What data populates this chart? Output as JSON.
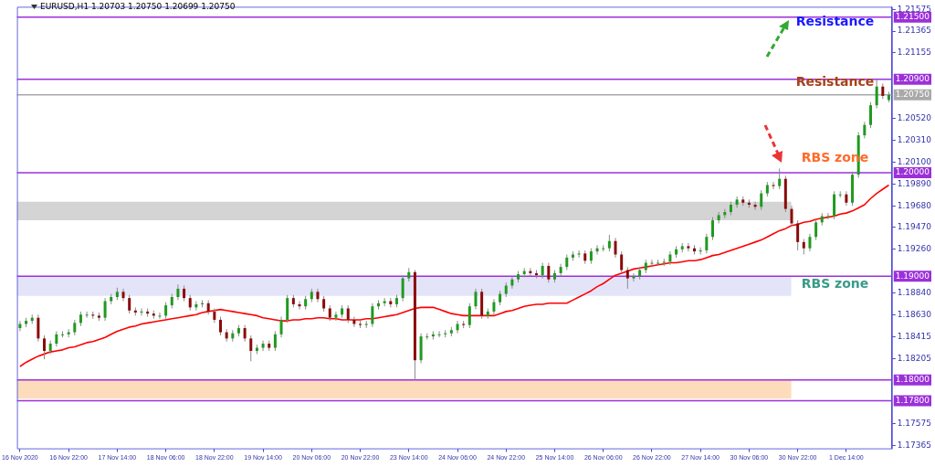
{
  "chart_data": {
    "type": "candlestick",
    "title": "EURUSD,H1  1.20703 1.20750 1.20699 1.20750",
    "categories": [
      "16 Nov 2020",
      null,
      null,
      null,
      null,
      null,
      null,
      null,
      "16 Nov 22:00",
      null,
      null,
      null,
      null,
      null,
      null,
      null,
      "17 Nov 14:00",
      null,
      null,
      null,
      null,
      null,
      null,
      null,
      "18 Nov 06:00",
      null,
      null,
      null,
      null,
      null,
      null,
      null,
      "18 Nov 22:00",
      null,
      null,
      null,
      null,
      null,
      null,
      null,
      "19 Nov 14:00",
      null,
      null,
      null,
      null,
      null,
      null,
      null,
      "20 Nov 06:00",
      null,
      null,
      null,
      null,
      null,
      null,
      null,
      "20 Nov 22:00",
      null,
      null,
      null,
      null,
      null,
      null,
      null,
      "23 Nov 14:00",
      null,
      null,
      null,
      null,
      null,
      null,
      null,
      "24 Nov 06:00",
      null,
      null,
      null,
      null,
      null,
      null,
      null,
      "24 Nov 22:00",
      null,
      null,
      null,
      null,
      null,
      null,
      null,
      "25 Nov 14:00",
      null,
      null,
      null,
      null,
      null,
      null,
      null,
      "26 Nov 06:00",
      null,
      null,
      null,
      null,
      null,
      null,
      null,
      "26 Nov 22:00",
      null,
      null,
      null,
      null,
      null,
      null,
      null,
      "27 Nov 14:00",
      null,
      null,
      null,
      null,
      null,
      null,
      null,
      "30 Nov 06:00",
      null,
      null,
      null,
      null,
      null,
      null,
      null,
      "30 Nov 22:00",
      null,
      null,
      null,
      null,
      null,
      null,
      null,
      "1 Dec 14:00",
      null,
      null,
      null,
      null,
      null,
      null,
      null
    ],
    "ohlc": [
      [
        1.185,
        1.1857,
        1.1847,
        1.1854
      ],
      [
        1.1854,
        1.186,
        1.1851,
        1.1857
      ],
      [
        1.1857,
        1.1863,
        1.1854,
        1.186
      ],
      [
        1.186,
        1.1863,
        1.1837,
        1.184
      ],
      [
        1.184,
        1.1843,
        1.182,
        1.1828
      ],
      [
        1.1828,
        1.1838,
        1.1825,
        1.1835
      ],
      [
        1.1835,
        1.1847,
        1.1832,
        1.1844
      ],
      [
        1.1844,
        1.1847,
        1.1841,
        1.1844
      ],
      [
        1.1844,
        1.1849,
        1.1841,
        1.1846
      ],
      [
        1.1846,
        1.1858,
        1.1843,
        1.1855
      ],
      [
        1.1855,
        1.1866,
        1.1852,
        1.1863
      ],
      [
        1.1863,
        1.1866,
        1.186,
        1.1863
      ],
      [
        1.1863,
        1.1866,
        1.1859,
        1.1862
      ],
      [
        1.1862,
        1.1865,
        1.1857,
        1.186
      ],
      [
        1.186,
        1.1879,
        1.1857,
        1.1876
      ],
      [
        1.1876,
        1.1883,
        1.1873,
        1.188
      ],
      [
        1.188,
        1.1889,
        1.1877,
        1.1885
      ],
      [
        1.1885,
        1.1888,
        1.1876,
        1.1879
      ],
      [
        1.1879,
        1.1882,
        1.1864,
        1.1867
      ],
      [
        1.1867,
        1.187,
        1.1862,
        1.1865
      ],
      [
        1.1865,
        1.1869,
        1.1862,
        1.1866
      ],
      [
        1.1866,
        1.1869,
        1.1861,
        1.1864
      ],
      [
        1.1864,
        1.1867,
        1.1859,
        1.1862
      ],
      [
        1.1862,
        1.1865,
        1.1859,
        1.1862
      ],
      [
        1.1862,
        1.1875,
        1.1859,
        1.1872
      ],
      [
        1.1872,
        1.1883,
        1.1869,
        1.188
      ],
      [
        1.188,
        1.1892,
        1.1877,
        1.1888
      ],
      [
        1.1888,
        1.1891,
        1.1876,
        1.1879
      ],
      [
        1.1879,
        1.1882,
        1.1867,
        1.187
      ],
      [
        1.187,
        1.1876,
        1.1867,
        1.1873
      ],
      [
        1.1873,
        1.1877,
        1.187,
        1.1874
      ],
      [
        1.1874,
        1.1877,
        1.1863,
        1.1866
      ],
      [
        1.1866,
        1.1869,
        1.1855,
        1.1858
      ],
      [
        1.1858,
        1.1861,
        1.1843,
        1.1846
      ],
      [
        1.1846,
        1.1849,
        1.1837,
        1.184
      ],
      [
        1.184,
        1.1848,
        1.1837,
        1.1845
      ],
      [
        1.1845,
        1.1853,
        1.1842,
        1.185
      ],
      [
        1.185,
        1.1853,
        1.1837,
        1.184
      ],
      [
        1.184,
        1.1843,
        1.1818,
        1.1828
      ],
      [
        1.1828,
        1.1834,
        1.1825,
        1.1831
      ],
      [
        1.1831,
        1.1838,
        1.1828,
        1.1835
      ],
      [
        1.1835,
        1.1838,
        1.1828,
        1.1831
      ],
      [
        1.1831,
        1.1847,
        1.1828,
        1.1844
      ],
      [
        1.1844,
        1.1861,
        1.1841,
        1.1858
      ],
      [
        1.1858,
        1.1882,
        1.1855,
        1.1879
      ],
      [
        1.1879,
        1.1882,
        1.187,
        1.1873
      ],
      [
        1.1873,
        1.1876,
        1.1868,
        1.1871
      ],
      [
        1.1871,
        1.1881,
        1.1868,
        1.1878
      ],
      [
        1.1878,
        1.1888,
        1.1875,
        1.1885
      ],
      [
        1.1885,
        1.1888,
        1.1875,
        1.1878
      ],
      [
        1.1878,
        1.1881,
        1.1866,
        1.1869
      ],
      [
        1.1869,
        1.1872,
        1.1857,
        1.186
      ],
      [
        1.186,
        1.1866,
        1.1857,
        1.1863
      ],
      [
        1.1863,
        1.1872,
        1.186,
        1.1869
      ],
      [
        1.1869,
        1.1872,
        1.1855,
        1.1858
      ],
      [
        1.1858,
        1.1861,
        1.1851,
        1.1854
      ],
      [
        1.1854,
        1.1857,
        1.185,
        1.1853
      ],
      [
        1.1853,
        1.1857,
        1.185,
        1.1854
      ],
      [
        1.1854,
        1.1874,
        1.1851,
        1.1871
      ],
      [
        1.1871,
        1.1877,
        1.1868,
        1.1874
      ],
      [
        1.1874,
        1.1879,
        1.1871,
        1.1876
      ],
      [
        1.1876,
        1.1879,
        1.187,
        1.1873
      ],
      [
        1.1873,
        1.1882,
        1.187,
        1.1879
      ],
      [
        1.1879,
        1.1901,
        1.1876,
        1.1898
      ],
      [
        1.1898,
        1.1908,
        1.1895,
        1.1904
      ],
      [
        1.1904,
        1.1906,
        1.18,
        1.1819
      ],
      [
        1.1819,
        1.1845,
        1.1816,
        1.1842
      ],
      [
        1.1842,
        1.1845,
        1.1839,
        1.1842
      ],
      [
        1.1842,
        1.1847,
        1.1839,
        1.1844
      ],
      [
        1.1844,
        1.1847,
        1.1841,
        1.1844
      ],
      [
        1.1844,
        1.1848,
        1.1841,
        1.1845
      ],
      [
        1.1845,
        1.1851,
        1.1842,
        1.1848
      ],
      [
        1.1848,
        1.1857,
        1.1845,
        1.1854
      ],
      [
        1.1854,
        1.1857,
        1.185,
        1.1853
      ],
      [
        1.1853,
        1.1874,
        1.185,
        1.1871
      ],
      [
        1.1871,
        1.1888,
        1.1868,
        1.1885
      ],
      [
        1.1885,
        1.1888,
        1.1859,
        1.1862
      ],
      [
        1.1862,
        1.1869,
        1.1859,
        1.1866
      ],
      [
        1.1866,
        1.1878,
        1.1863,
        1.1875
      ],
      [
        1.1875,
        1.1886,
        1.1872,
        1.1883
      ],
      [
        1.1883,
        1.1894,
        1.188,
        1.1891
      ],
      [
        1.1891,
        1.19,
        1.1888,
        1.1897
      ],
      [
        1.1897,
        1.1905,
        1.1894,
        1.1902
      ],
      [
        1.1902,
        1.1908,
        1.1899,
        1.1905
      ],
      [
        1.1905,
        1.1908,
        1.19,
        1.1903
      ],
      [
        1.1903,
        1.1906,
        1.1898,
        1.1901
      ],
      [
        1.1901,
        1.1913,
        1.1898,
        1.191
      ],
      [
        1.191,
        1.1913,
        1.1894,
        1.1897
      ],
      [
        1.1897,
        1.1906,
        1.1894,
        1.1903
      ],
      [
        1.1903,
        1.1912,
        1.19,
        1.1909
      ],
      [
        1.1909,
        1.1921,
        1.1906,
        1.1918
      ],
      [
        1.1918,
        1.1924,
        1.1915,
        1.1921
      ],
      [
        1.1921,
        1.1925,
        1.1918,
        1.1922
      ],
      [
        1.1922,
        1.1925,
        1.1912,
        1.1915
      ],
      [
        1.1915,
        1.1927,
        1.1912,
        1.1924
      ],
      [
        1.1924,
        1.193,
        1.1921,
        1.1927
      ],
      [
        1.1927,
        1.193,
        1.1924,
        1.1927
      ],
      [
        1.1927,
        1.194,
        1.1924,
        1.1934
      ],
      [
        1.1934,
        1.1937,
        1.1918,
        1.1921
      ],
      [
        1.1921,
        1.1924,
        1.1903,
        1.1906
      ],
      [
        1.1906,
        1.1909,
        1.1888,
        1.1898
      ],
      [
        1.1898,
        1.1903,
        1.1895,
        1.19
      ],
      [
        1.19,
        1.1909,
        1.1897,
        1.1906
      ],
      [
        1.1906,
        1.1916,
        1.1903,
        1.1913
      ],
      [
        1.1913,
        1.1916,
        1.191,
        1.1913
      ],
      [
        1.1913,
        1.1916,
        1.191,
        1.1913
      ],
      [
        1.1913,
        1.1917,
        1.191,
        1.1914
      ],
      [
        1.1914,
        1.1924,
        1.1911,
        1.1921
      ],
      [
        1.1921,
        1.1929,
        1.1918,
        1.1926
      ],
      [
        1.1926,
        1.1932,
        1.1923,
        1.1929
      ],
      [
        1.1929,
        1.1932,
        1.1924,
        1.1927
      ],
      [
        1.1927,
        1.193,
        1.1921,
        1.1924
      ],
      [
        1.1924,
        1.1928,
        1.1921,
        1.1925
      ],
      [
        1.1925,
        1.1941,
        1.1922,
        1.1938
      ],
      [
        1.1938,
        1.1957,
        1.1935,
        1.1954
      ],
      [
        1.1954,
        1.1962,
        1.1951,
        1.1959
      ],
      [
        1.1959,
        1.1965,
        1.1956,
        1.1962
      ],
      [
        1.1962,
        1.1972,
        1.1959,
        1.1969
      ],
      [
        1.1969,
        1.1977,
        1.1966,
        1.1974
      ],
      [
        1.1974,
        1.1977,
        1.1968,
        1.1971
      ],
      [
        1.1971,
        1.1974,
        1.1966,
        1.1969
      ],
      [
        1.1969,
        1.1972,
        1.1964,
        1.1967
      ],
      [
        1.1967,
        1.1983,
        1.1964,
        1.198
      ],
      [
        1.198,
        1.1991,
        1.1977,
        1.1988
      ],
      [
        1.1988,
        1.1991,
        1.1984,
        1.1987
      ],
      [
        1.1987,
        1.2004,
        1.1984,
        1.1994
      ],
      [
        1.1994,
        1.1997,
        1.1962,
        1.1965
      ],
      [
        1.1965,
        1.1968,
        1.1948,
        1.1951
      ],
      [
        1.1951,
        1.1954,
        1.1925,
        1.1933
      ],
      [
        1.1933,
        1.1936,
        1.1921,
        1.1927
      ],
      [
        1.1927,
        1.1941,
        1.1924,
        1.1938
      ],
      [
        1.1938,
        1.1955,
        1.1935,
        1.1952
      ],
      [
        1.1952,
        1.1961,
        1.1949,
        1.1958
      ],
      [
        1.1958,
        1.1961,
        1.1955,
        1.1958
      ],
      [
        1.1958,
        1.1982,
        1.1955,
        1.1979
      ],
      [
        1.1979,
        1.1982,
        1.1976,
        1.1979
      ],
      [
        1.1979,
        1.1982,
        1.1968,
        1.1971
      ],
      [
        1.1971,
        1.2001,
        1.1968,
        1.1998
      ],
      [
        1.1998,
        1.2039,
        1.1995,
        1.2036
      ],
      [
        1.2036,
        1.2049,
        1.2033,
        1.2046
      ],
      [
        1.2046,
        1.2068,
        1.2043,
        1.2065
      ],
      [
        1.2065,
        1.209,
        1.2062,
        1.2083
      ],
      [
        1.2083,
        1.2086,
        1.2071,
        1.2074
      ],
      [
        1.207,
        1.2078,
        1.2068,
        1.2075
      ]
    ],
    "series": [
      {
        "type": "line",
        "color": "#ff0000",
        "values": [
          1.1813,
          1.1817,
          1.182,
          1.1823,
          1.1825,
          1.1827,
          1.1828,
          1.1829,
          1.1831,
          1.1832,
          1.1834,
          1.1836,
          1.1837,
          1.1839,
          1.1841,
          1.1844,
          1.1847,
          1.1849,
          1.1851,
          1.1852,
          1.1854,
          1.1855,
          1.1856,
          1.1857,
          1.1858,
          1.1859,
          1.186,
          1.1861,
          1.1862,
          1.1863,
          1.1865,
          1.1866,
          1.1867,
          1.1868,
          1.1867,
          1.1866,
          1.1865,
          1.1864,
          1.1863,
          1.1862,
          1.186,
          1.1859,
          1.1858,
          1.1857,
          1.1857,
          1.1858,
          1.1858,
          1.1859,
          1.1859,
          1.186,
          1.186,
          1.1859,
          1.1859,
          1.1858,
          1.1858,
          1.1858,
          1.1858,
          1.1859,
          1.1859,
          1.186,
          1.1861,
          1.1862,
          1.1863,
          1.1865,
          1.1867,
          1.1869,
          1.187,
          1.187,
          1.187,
          1.1868,
          1.1866,
          1.1864,
          1.1863,
          1.1862,
          1.1862,
          1.1862,
          1.1862,
          1.1862,
          1.1862,
          1.1864,
          1.1866,
          1.1867,
          1.1869,
          1.1871,
          1.1872,
          1.1873,
          1.1873,
          1.1874,
          1.1874,
          1.1874,
          1.1874,
          1.1877,
          1.188,
          1.1883,
          1.1886,
          1.189,
          1.1893,
          1.1897,
          1.1901,
          1.1903,
          1.1905,
          1.1907,
          1.1908,
          1.1909,
          1.191,
          1.1911,
          1.1912,
          1.1913,
          1.1913,
          1.1914,
          1.1915,
          1.1915,
          1.1916,
          1.1918,
          1.192,
          1.1921,
          1.1923,
          1.1925,
          1.1927,
          1.1929,
          1.1931,
          1.1933,
          1.1935,
          1.1938,
          1.1941,
          1.1944,
          1.1946,
          1.1949,
          1.195,
          1.1952,
          1.1953,
          1.1955,
          1.1956,
          1.1957,
          1.1958,
          1.196,
          1.1961,
          1.1963,
          1.1966,
          1.1969,
          1.1975,
          1.198,
          1.1984,
          1.1988
        ]
      }
    ],
    "ylim": [
      1.1734,
      1.216
    ],
    "yticks": [
      {
        "value": 1.21575,
        "label": "1.21575"
      },
      {
        "value": 1.21365,
        "label": "1.21365"
      },
      {
        "value": 1.21155,
        "label": "1.21155"
      },
      {
        "value": 1.2052,
        "label": "1.20520"
      },
      {
        "value": 1.2031,
        "label": "1.20310"
      },
      {
        "value": 1.201,
        "label": "1.20100"
      },
      {
        "value": 1.1989,
        "label": "1.19890"
      },
      {
        "value": 1.1968,
        "label": "1.19680"
      },
      {
        "value": 1.1947,
        "label": "1.19470"
      },
      {
        "value": 1.1926,
        "label": "1.19260"
      },
      {
        "value": 1.1884,
        "label": "1.18840"
      },
      {
        "value": 1.1863,
        "label": "1.18630"
      },
      {
        "value": 1.18415,
        "label": "1.18415"
      },
      {
        "value": 1.18205,
        "label": "1.18205"
      },
      {
        "value": 1.17575,
        "label": "1.17575"
      },
      {
        "value": 1.17365,
        "label": "1.17365"
      }
    ],
    "ref_lines": [
      {
        "axis": "y",
        "value": 1.215,
        "label": "1.21500",
        "color": "#9b30d9"
      },
      {
        "axis": "y",
        "value": 1.209,
        "label": "1.20900",
        "color": "#9b30d9"
      },
      {
        "axis": "y",
        "value": 1.2075,
        "label": "1.20750",
        "color": "#a9a9a9"
      },
      {
        "axis": "y",
        "value": 1.2,
        "label": "1.20000",
        "color": "#9b30d9"
      },
      {
        "axis": "y",
        "value": 1.19,
        "label": "1.19000",
        "color": "#9b30d9"
      },
      {
        "axis": "y",
        "value": 1.18,
        "label": "1.18000",
        "color": "#9b30d9"
      },
      {
        "axis": "y",
        "value": 1.178,
        "label": "1.17800",
        "color": "#9b30d9"
      }
    ],
    "bands": [
      {
        "axis": "y",
        "from": 1.1954,
        "to": 1.1972,
        "color": "#d4d4d4"
      },
      {
        "axis": "y",
        "from": 1.1881,
        "to": 1.19,
        "color": "#e4e4f8"
      },
      {
        "axis": "y",
        "from": 1.1782,
        "to": 1.18,
        "color": "#fddcbc"
      }
    ],
    "annotations": [
      "Resistance",
      "Resistance",
      "RBS zone",
      "RBS zone"
    ]
  }
}
